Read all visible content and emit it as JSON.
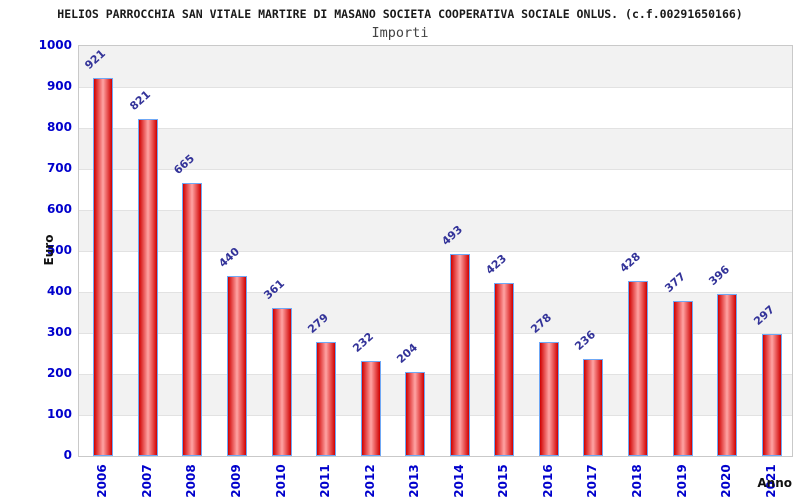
{
  "chart_data": {
    "type": "bar",
    "title": "HELIOS PARROCCHIA SAN VITALE MARTIRE DI MASANO SOCIETA COOPERATIVA SOCIALE ONLUS. (c.f.00291650166)",
    "subtitle": "Importi",
    "xlabel": "Anno",
    "ylabel": "Euro",
    "categories": [
      "2006",
      "2007",
      "2008",
      "2009",
      "2010",
      "2011",
      "2012",
      "2013",
      "2014",
      "2015",
      "2016",
      "2017",
      "2018",
      "2019",
      "2020",
      "2021"
    ],
    "values": [
      921,
      821,
      665,
      440,
      361,
      279,
      232,
      204,
      493,
      423,
      278,
      236,
      428,
      377,
      396,
      297
    ],
    "ylim": [
      0,
      1000
    ],
    "ytick_step": 100,
    "y_ticks": [
      1000,
      900,
      800,
      700,
      600,
      500,
      400,
      300,
      200,
      100,
      0
    ],
    "grid": true,
    "legend": false,
    "value_labels_shown": true,
    "colors": {
      "bar_edge": "#d00000",
      "bar_center": "#ffa4a4",
      "bar_border": "#6fa8f5",
      "axis_tick_label": "#0000cc",
      "value_label": "#333399",
      "band_gray": "#f2f2f2",
      "band_white": "#ffffff",
      "grid_line": "#e2e2e2",
      "plot_border": "#c9c9c9",
      "title": "#1a1a1a",
      "subtitle": "#444444",
      "axis_title": "#111111"
    }
  }
}
